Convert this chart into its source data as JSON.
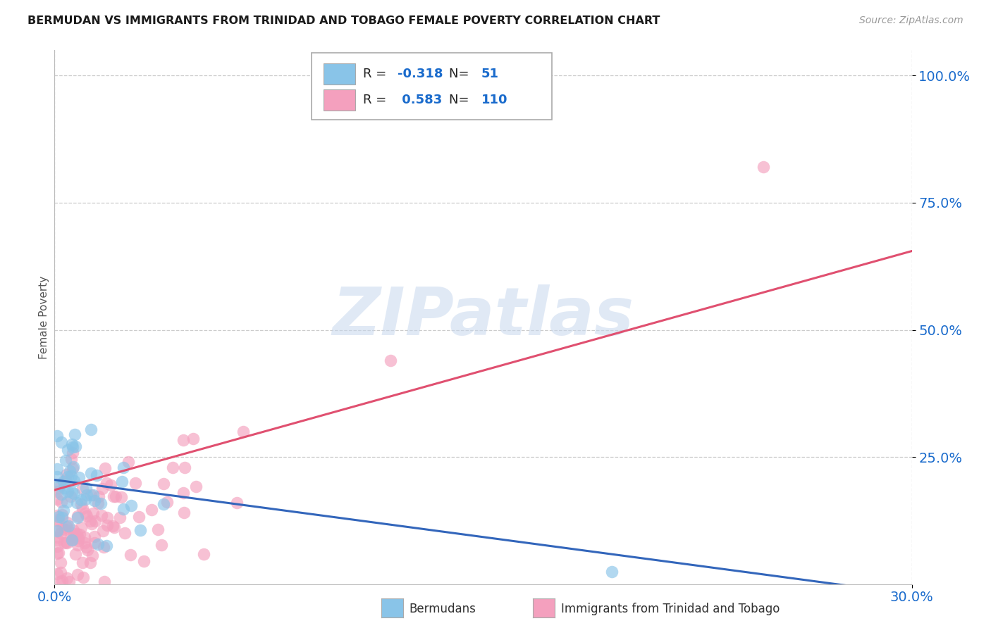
{
  "title": "BERMUDAN VS IMMIGRANTS FROM TRINIDAD AND TOBAGO FEMALE POVERTY CORRELATION CHART",
  "source": "Source: ZipAtlas.com",
  "ylabel": "Female Poverty",
  "xlim": [
    0.0,
    0.3
  ],
  "ylim": [
    0.0,
    1.05
  ],
  "ytick_positions": [
    0.25,
    0.5,
    0.75,
    1.0
  ],
  "ytick_labels": [
    "25.0%",
    "50.0%",
    "75.0%",
    "100.0%"
  ],
  "xtick_positions": [
    0.0,
    0.3
  ],
  "xtick_labels": [
    "0.0%",
    "30.0%"
  ],
  "background_color": "#ffffff",
  "grid_color": "#cccccc",
  "watermark_text": "ZIPatlas",
  "legend_R1": "-0.318",
  "legend_N1": "51",
  "legend_R2": "0.583",
  "legend_N2": "110",
  "color_blue": "#89C4E8",
  "color_pink": "#F4A0BE",
  "color_blue_line": "#3366BB",
  "color_pink_line": "#E05070",
  "legend_label1": "Bermudans",
  "legend_label2": "Immigrants from Trinidad and Tobago",
  "blue_line_x0": 0.0,
  "blue_line_y0": 0.205,
  "blue_line_x1": 0.3,
  "blue_line_y1": -0.02,
  "pink_line_x0": 0.0,
  "pink_line_y0": 0.185,
  "pink_line_x1": 0.3,
  "pink_line_y1": 0.655
}
